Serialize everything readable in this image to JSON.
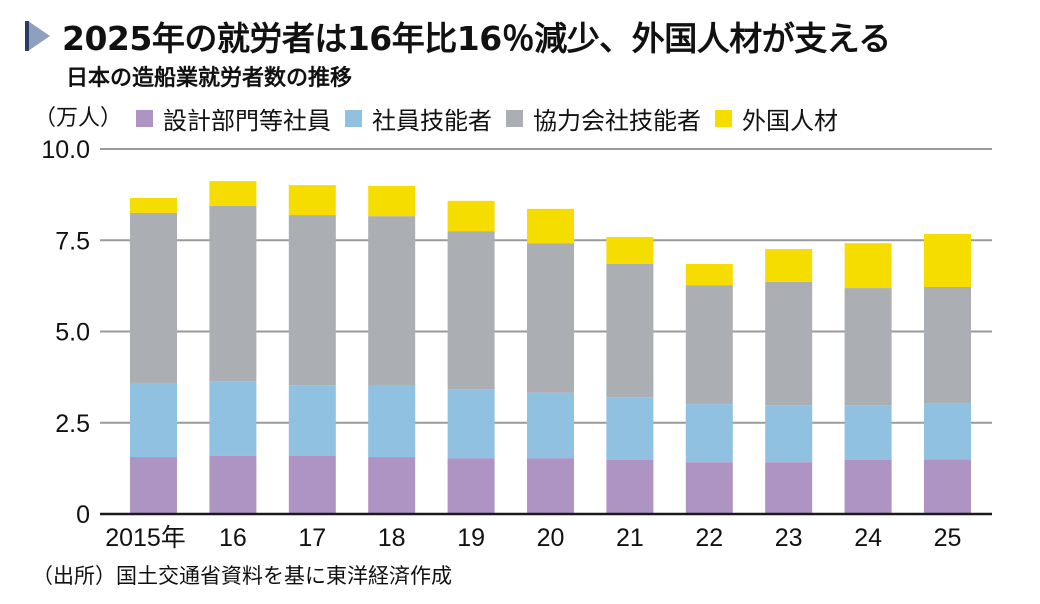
{
  "header": {
    "title": "2025年の就労者は16年比16％減少、外国人材が支える",
    "subtitle": "日本の造船業就労者数の推移"
  },
  "unit_label": "（万人）",
  "source": "（出所）国土交通省資料を基に東洋経済作成",
  "legend": [
    {
      "label": "設計部門等社員",
      "color": "#ae94c3"
    },
    {
      "label": "社員技能者",
      "color": "#90c1e1"
    },
    {
      "label": "協力会社技能者",
      "color": "#abafb4"
    },
    {
      "label": "外国人材",
      "color": "#f6dd00"
    }
  ],
  "chart_data": {
    "type": "bar",
    "stacked": true,
    "title": "日本の造船業就労者数の推移",
    "xlabel": "",
    "ylabel": "（万人）",
    "ylim": [
      0,
      10
    ],
    "yticks": [
      0,
      2.5,
      5.0,
      7.5,
      10.0
    ],
    "ytick_labels": [
      "0",
      "2.5",
      "5.0",
      "7.5",
      "10.0"
    ],
    "grid": true,
    "legend_position": "top",
    "categories": [
      "2015年",
      "16",
      "17",
      "18",
      "19",
      "20",
      "21",
      "22",
      "23",
      "24",
      "25"
    ],
    "series": [
      {
        "name": "設計部門等社員",
        "color": "#ae94c3",
        "values": [
          1.56,
          1.59,
          1.6,
          1.56,
          1.53,
          1.53,
          1.48,
          1.42,
          1.42,
          1.48,
          1.5
        ]
      },
      {
        "name": "社員技能者",
        "color": "#90c1e1",
        "values": [
          2.03,
          2.05,
          1.93,
          1.95,
          1.89,
          1.79,
          1.72,
          1.59,
          1.56,
          1.5,
          1.54
        ]
      },
      {
        "name": "協力会社技能者",
        "color": "#abafb4",
        "values": [
          4.66,
          4.8,
          4.66,
          4.65,
          4.33,
          4.1,
          3.65,
          3.26,
          3.38,
          3.21,
          3.18
        ]
      },
      {
        "name": "外国人材",
        "color": "#f6dd00",
        "values": [
          0.41,
          0.68,
          0.82,
          0.83,
          0.83,
          0.94,
          0.74,
          0.58,
          0.9,
          1.23,
          1.45
        ]
      }
    ]
  }
}
